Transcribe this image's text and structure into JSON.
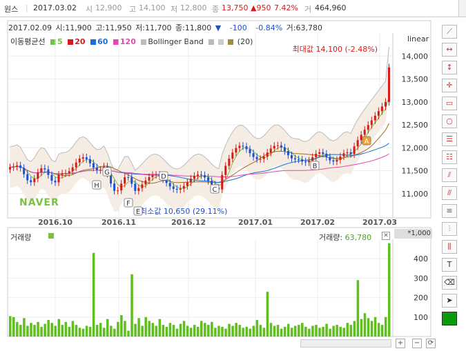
{
  "header": {
    "name": "원스",
    "date": "2017.03.02",
    "open_lbl": "시",
    "open": "12,900",
    "high_lbl": "고",
    "high": "14,100",
    "low_lbl": "저",
    "low": "12,800",
    "close_lbl": "종",
    "close": "13,750",
    "change": "▲950",
    "change_pct": "7.42%",
    "volume_lbl": "거",
    "volume": "464,960"
  },
  "info": {
    "date": "2017.02.09",
    "open": "시:11,900",
    "high": "고:11,950",
    "low": "저:11,700",
    "close": "종:11,800",
    "arrow": "▼",
    "change": "-100",
    "change_pct": "-0.84%",
    "volume": "거:63,780"
  },
  "ma": {
    "label": "이동평균선",
    "ma5": "5",
    "ma20": "20",
    "ma60": "60",
    "ma120": "120",
    "bb_label": "Bollinger Band",
    "bb_param": "(20)",
    "colors": {
      "ma5": "#7ac143",
      "ma20": "#d61a1a",
      "ma60": "#1a6fd6",
      "ma120": "#e04ab0",
      "bb": "#999999"
    }
  },
  "scale_label": "linear",
  "watermark": "NAVER",
  "chart_data": {
    "type": "candlestick",
    "ylim": [
      10500,
      14500
    ],
    "y_ticks": [
      "14,000",
      "13,500",
      "13,000",
      "12,500",
      "12,000",
      "11,500",
      "11,000"
    ],
    "x_ticks": [
      "2016.10",
      "2016.11",
      "2016.12",
      "2017.01",
      "2017.02",
      "2017.03"
    ],
    "max_annotation": "최대값 14,100 (-2.48%)",
    "min_annotation": "최소값 10,650 (29.11%)",
    "signals": [
      "H",
      "G",
      "F",
      "E",
      "D",
      "C",
      "B",
      "A"
    ],
    "volume": {
      "label": "거래량",
      "current_label": "거래량:",
      "current_value": "63,780",
      "unit": "*1,000",
      "ylim": [
        0,
        500
      ],
      "y_ticks": [
        "400",
        "300",
        "200",
        "100"
      ],
      "values": [
        105,
        100,
        75,
        60,
        95,
        55,
        70,
        60,
        75,
        50,
        65,
        85,
        70,
        55,
        90,
        60,
        75,
        50,
        80,
        60,
        45,
        40,
        55,
        50,
        430,
        60,
        70,
        45,
        90,
        55,
        40,
        75,
        110,
        80,
        30,
        320,
        65,
        95,
        55,
        100,
        80,
        70,
        55,
        90,
        60,
        50,
        70,
        60,
        40,
        65,
        80,
        55,
        45,
        60,
        50,
        80,
        70,
        60,
        75,
        45,
        55,
        50,
        40,
        65,
        55,
        70,
        60,
        45,
        50,
        40,
        55,
        85,
        60,
        45,
        230,
        70,
        55,
        60,
        40,
        50,
        65,
        45,
        55,
        60,
        70,
        50,
        40,
        55,
        60,
        45,
        50,
        65,
        40,
        55,
        60,
        50,
        45,
        70,
        60,
        80,
        290,
        90,
        120,
        95,
        80,
        100,
        70,
        60,
        100,
        480
      ]
    }
  }
}
